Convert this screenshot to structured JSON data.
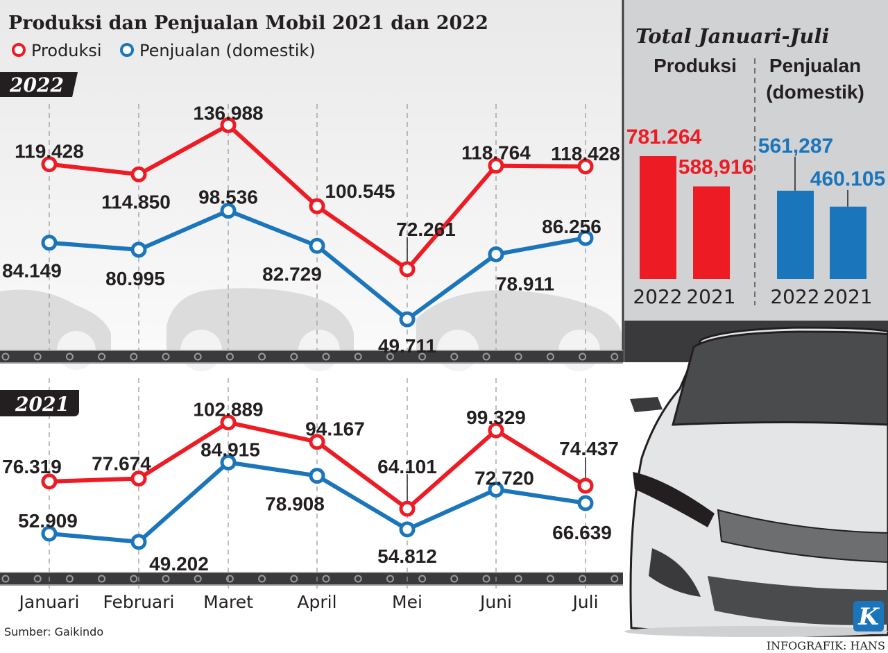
{
  "title": "Produksi dan Penjualan Mobil 2021 dan 2022",
  "source": "Sumber: Gaikindo",
  "credit": "INFOGRAFIK: HANS",
  "logo_letter": "K",
  "colors": {
    "produksi": "#ed1c24",
    "penjualan": "#1b75bb",
    "panel": "#d1d2d4",
    "dark": "#231f20"
  },
  "chart_data": [
    {
      "type": "line",
      "title": "2022",
      "categories": [
        "Januari",
        "Februari",
        "Maret",
        "April",
        "Mei",
        "Juni",
        "Juli"
      ],
      "legend": "top-left",
      "grid": "vertical dashed",
      "series": [
        {
          "name": "Produksi",
          "values": [
            119428,
            114850,
            136988,
            100545,
            72261,
            118764,
            118428
          ],
          "labels": [
            "119.428",
            "114.850",
            "136.988",
            "100.545",
            "72.261",
            "118.764",
            "118.428"
          ]
        },
        {
          "name": "Penjualan (domestik)",
          "values": [
            84149,
            80995,
            98536,
            82729,
            49711,
            78911,
            86256
          ],
          "labels": [
            "84.149",
            "80.995",
            "98.536",
            "82.729",
            "49.711",
            "78.911",
            "86.256"
          ]
        }
      ]
    },
    {
      "type": "line",
      "title": "2021",
      "categories": [
        "Januari",
        "Februari",
        "Maret",
        "April",
        "Mei",
        "Juni",
        "Juli"
      ],
      "grid": "vertical dashed",
      "series": [
        {
          "name": "Produksi",
          "values": [
            76319,
            77674,
            102889,
            94167,
            64101,
            99329,
            74437
          ],
          "labels": [
            "76.319",
            "77.674",
            "102.889",
            "94.167",
            "64.101",
            "99.329",
            "74.437"
          ]
        },
        {
          "name": "Penjualan (domestik)",
          "values": [
            52909,
            49202,
            84915,
            78908,
            54812,
            72720,
            66639
          ],
          "labels": [
            "52.909",
            "49.202",
            "84.915",
            "78.908",
            "54.812",
            "72.720",
            "66.639"
          ]
        }
      ]
    },
    {
      "type": "bar",
      "title": "Total Januari-Juli",
      "groups": [
        {
          "name": "Produksi",
          "categories": [
            "2022",
            "2021"
          ],
          "values": [
            781264,
            588916
          ],
          "labels": [
            "781.264",
            "588,916"
          ]
        },
        {
          "name_lines": [
            "Penjualan",
            "(domestik)"
          ],
          "categories": [
            "2022",
            "2021"
          ],
          "values": [
            561287,
            460105
          ],
          "labels": [
            "561,287",
            "460.105"
          ]
        }
      ]
    }
  ]
}
